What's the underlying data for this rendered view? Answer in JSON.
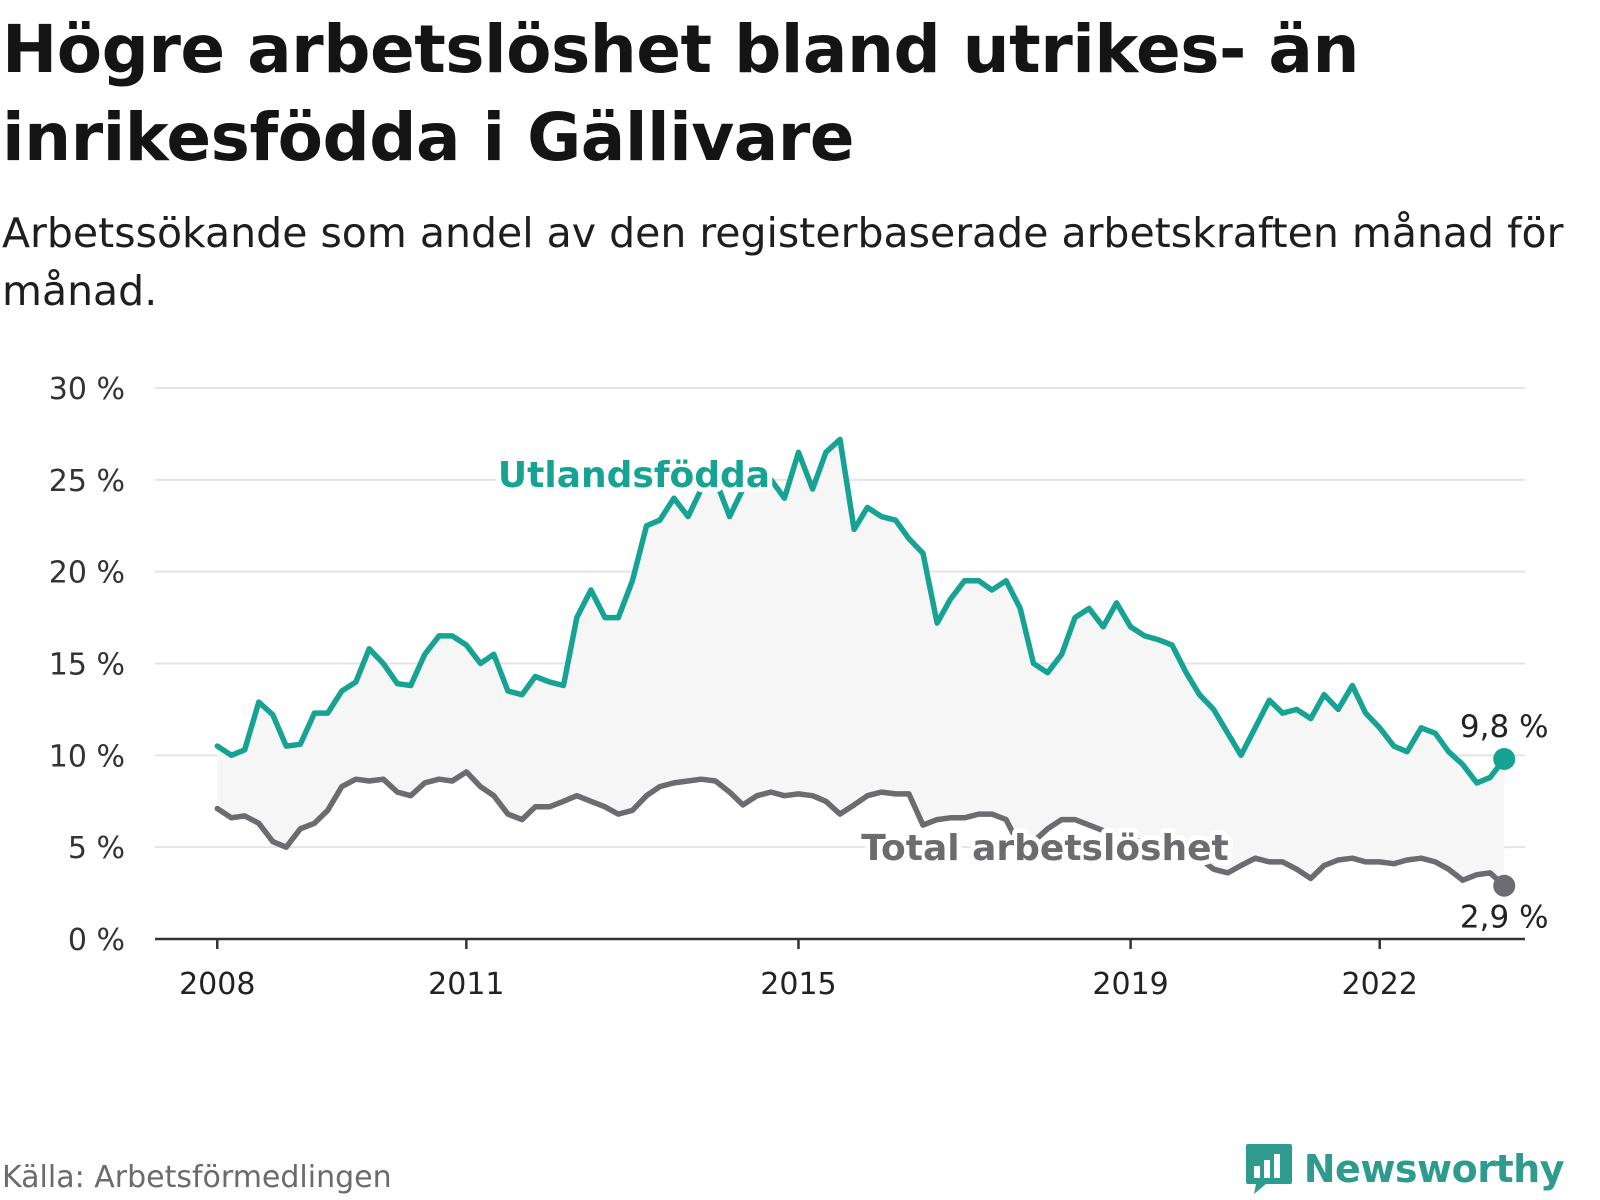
{
  "header": {
    "title": "Högre arbetslöshet bland utrikes- än inrikesfödda i Gällivare",
    "subtitle": "Arbetssökande som andel av den registerbaserade arbetskraften månad för månad."
  },
  "footer": {
    "source": "Källa: Arbetsförmedlingen",
    "brand": "Newsworthy"
  },
  "colors": {
    "foreign": "#16a394",
    "total": "#6b6b70",
    "area": "#f6f6f6",
    "grid": "#e4e4e4",
    "axis": "#333333"
  },
  "chart_data": {
    "type": "line",
    "title": "Högre arbetslöshet bland utrikes- än inrikesfödda i Gällivare",
    "ylim": [
      0,
      30
    ],
    "yticks": [
      0,
      5,
      10,
      15,
      20,
      25,
      30
    ],
    "ytick_labels": [
      "0 %",
      "5 %",
      "10 %",
      "15 %",
      "20 %",
      "25 %",
      "30 %"
    ],
    "xlim": [
      2007.25,
      2023.75
    ],
    "xticks": [
      2008,
      2011,
      2015,
      2019,
      2022
    ],
    "xtick_labels": [
      "2008",
      "2011",
      "2015",
      "2019",
      "2022"
    ],
    "grid": true,
    "series": [
      {
        "name": "Utlandsfödda",
        "label": "Utlandsfödda",
        "end_label": "9,8 %",
        "points": [
          [
            2008.0,
            10.5
          ],
          [
            2008.17,
            10.0
          ],
          [
            2008.33,
            10.3
          ],
          [
            2008.5,
            12.9
          ],
          [
            2008.67,
            12.2
          ],
          [
            2008.83,
            10.5
          ],
          [
            2009.0,
            10.6
          ],
          [
            2009.17,
            12.3
          ],
          [
            2009.33,
            12.3
          ],
          [
            2009.5,
            13.5
          ],
          [
            2009.67,
            14.0
          ],
          [
            2009.83,
            15.8
          ],
          [
            2010.0,
            15.0
          ],
          [
            2010.17,
            13.9
          ],
          [
            2010.33,
            13.8
          ],
          [
            2010.5,
            15.5
          ],
          [
            2010.67,
            16.5
          ],
          [
            2010.83,
            16.5
          ],
          [
            2011.0,
            16.0
          ],
          [
            2011.17,
            15.0
          ],
          [
            2011.33,
            15.5
          ],
          [
            2011.5,
            13.5
          ],
          [
            2011.67,
            13.3
          ],
          [
            2011.83,
            14.3
          ],
          [
            2012.0,
            14.0
          ],
          [
            2012.17,
            13.8
          ],
          [
            2012.33,
            17.5
          ],
          [
            2012.5,
            19.0
          ],
          [
            2012.67,
            17.5
          ],
          [
            2012.83,
            17.5
          ],
          [
            2013.0,
            19.5
          ],
          [
            2013.17,
            22.5
          ],
          [
            2013.33,
            22.8
          ],
          [
            2013.5,
            24.0
          ],
          [
            2013.67,
            23.0
          ],
          [
            2013.83,
            24.5
          ],
          [
            2014.0,
            25.0
          ],
          [
            2014.17,
            23.0
          ],
          [
            2014.33,
            24.5
          ],
          [
            2014.5,
            25.5
          ],
          [
            2014.67,
            25.0
          ],
          [
            2014.83,
            24.0
          ],
          [
            2015.0,
            26.5
          ],
          [
            2015.17,
            24.5
          ],
          [
            2015.33,
            26.5
          ],
          [
            2015.5,
            27.2
          ],
          [
            2015.67,
            22.3
          ],
          [
            2015.83,
            23.5
          ],
          [
            2016.0,
            23.0
          ],
          [
            2016.17,
            22.8
          ],
          [
            2016.33,
            21.8
          ],
          [
            2016.5,
            21.0
          ],
          [
            2016.67,
            17.2
          ],
          [
            2016.83,
            18.5
          ],
          [
            2017.0,
            19.5
          ],
          [
            2017.17,
            19.5
          ],
          [
            2017.33,
            19.0
          ],
          [
            2017.5,
            19.5
          ],
          [
            2017.67,
            18.0
          ],
          [
            2017.83,
            15.0
          ],
          [
            2018.0,
            14.5
          ],
          [
            2018.17,
            15.5
          ],
          [
            2018.33,
            17.5
          ],
          [
            2018.5,
            18.0
          ],
          [
            2018.67,
            17.0
          ],
          [
            2018.83,
            18.3
          ],
          [
            2019.0,
            17.0
          ],
          [
            2019.17,
            16.5
          ],
          [
            2019.33,
            16.3
          ],
          [
            2019.5,
            16.0
          ],
          [
            2019.67,
            14.5
          ],
          [
            2019.83,
            13.3
          ],
          [
            2020.0,
            12.5
          ],
          [
            2020.17,
            11.2
          ],
          [
            2020.33,
            10.0
          ],
          [
            2020.5,
            11.5
          ],
          [
            2020.67,
            13.0
          ],
          [
            2020.83,
            12.3
          ],
          [
            2021.0,
            12.5
          ],
          [
            2021.17,
            12.0
          ],
          [
            2021.33,
            13.3
          ],
          [
            2021.5,
            12.5
          ],
          [
            2021.67,
            13.8
          ],
          [
            2021.83,
            12.3
          ],
          [
            2022.0,
            11.5
          ],
          [
            2022.17,
            10.5
          ],
          [
            2022.33,
            10.2
          ],
          [
            2022.5,
            11.5
          ],
          [
            2022.67,
            11.2
          ],
          [
            2022.83,
            10.2
          ],
          [
            2023.0,
            9.5
          ],
          [
            2023.17,
            8.5
          ],
          [
            2023.33,
            8.8
          ],
          [
            2023.5,
            9.8
          ]
        ]
      },
      {
        "name": "Total arbetslöshet",
        "label": "Total arbetslöshet",
        "end_label": "2,9 %",
        "points": [
          [
            2008.0,
            7.1
          ],
          [
            2008.17,
            6.6
          ],
          [
            2008.33,
            6.7
          ],
          [
            2008.5,
            6.3
          ],
          [
            2008.67,
            5.3
          ],
          [
            2008.83,
            5.0
          ],
          [
            2009.0,
            6.0
          ],
          [
            2009.17,
            6.3
          ],
          [
            2009.33,
            7.0
          ],
          [
            2009.5,
            8.3
          ],
          [
            2009.67,
            8.7
          ],
          [
            2009.83,
            8.6
          ],
          [
            2010.0,
            8.7
          ],
          [
            2010.17,
            8.0
          ],
          [
            2010.33,
            7.8
          ],
          [
            2010.5,
            8.5
          ],
          [
            2010.67,
            8.7
          ],
          [
            2010.83,
            8.6
          ],
          [
            2011.0,
            9.1
          ],
          [
            2011.17,
            8.3
          ],
          [
            2011.33,
            7.8
          ],
          [
            2011.5,
            6.8
          ],
          [
            2011.67,
            6.5
          ],
          [
            2011.83,
            7.2
          ],
          [
            2012.0,
            7.2
          ],
          [
            2012.17,
            7.5
          ],
          [
            2012.33,
            7.8
          ],
          [
            2012.5,
            7.5
          ],
          [
            2012.67,
            7.2
          ],
          [
            2012.83,
            6.8
          ],
          [
            2013.0,
            7.0
          ],
          [
            2013.17,
            7.8
          ],
          [
            2013.33,
            8.3
          ],
          [
            2013.5,
            8.5
          ],
          [
            2013.67,
            8.6
          ],
          [
            2013.83,
            8.7
          ],
          [
            2014.0,
            8.6
          ],
          [
            2014.17,
            8.0
          ],
          [
            2014.33,
            7.3
          ],
          [
            2014.5,
            7.8
          ],
          [
            2014.67,
            8.0
          ],
          [
            2014.83,
            7.8
          ],
          [
            2015.0,
            7.9
          ],
          [
            2015.17,
            7.8
          ],
          [
            2015.33,
            7.5
          ],
          [
            2015.5,
            6.8
          ],
          [
            2015.67,
            7.3
          ],
          [
            2015.83,
            7.8
          ],
          [
            2016.0,
            8.0
          ],
          [
            2016.17,
            7.9
          ],
          [
            2016.33,
            7.9
          ],
          [
            2016.5,
            6.2
          ],
          [
            2016.67,
            6.5
          ],
          [
            2016.83,
            6.6
          ],
          [
            2017.0,
            6.6
          ],
          [
            2017.17,
            6.8
          ],
          [
            2017.33,
            6.8
          ],
          [
            2017.5,
            6.5
          ],
          [
            2017.67,
            5.0
          ],
          [
            2017.83,
            5.3
          ],
          [
            2018.0,
            6.0
          ],
          [
            2018.17,
            6.5
          ],
          [
            2018.33,
            6.5
          ],
          [
            2018.5,
            6.2
          ],
          [
            2018.67,
            5.9
          ],
          [
            2018.83,
            5.7
          ],
          [
            2019.0,
            5.4
          ],
          [
            2019.17,
            5.3
          ],
          [
            2019.33,
            5.1
          ],
          [
            2019.5,
            5.0
          ],
          [
            2019.67,
            4.7
          ],
          [
            2019.83,
            4.4
          ],
          [
            2020.0,
            3.8
          ],
          [
            2020.17,
            3.6
          ],
          [
            2020.33,
            4.0
          ],
          [
            2020.5,
            4.4
          ],
          [
            2020.67,
            4.2
          ],
          [
            2020.83,
            4.2
          ],
          [
            2021.0,
            3.8
          ],
          [
            2021.17,
            3.3
          ],
          [
            2021.33,
            4.0
          ],
          [
            2021.5,
            4.3
          ],
          [
            2021.67,
            4.4
          ],
          [
            2021.83,
            4.2
          ],
          [
            2022.0,
            4.2
          ],
          [
            2022.17,
            4.1
          ],
          [
            2022.33,
            4.3
          ],
          [
            2022.5,
            4.4
          ],
          [
            2022.67,
            4.2
          ],
          [
            2022.83,
            3.8
          ],
          [
            2023.0,
            3.2
          ],
          [
            2023.17,
            3.5
          ],
          [
            2023.33,
            3.6
          ],
          [
            2023.5,
            2.9
          ]
        ]
      }
    ]
  }
}
